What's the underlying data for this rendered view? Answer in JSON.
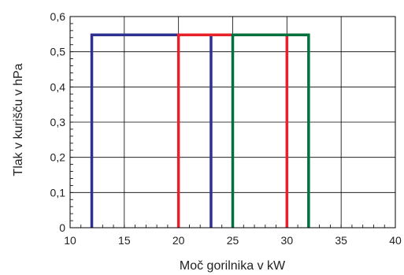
{
  "chart_data": {
    "type": "line",
    "title": "",
    "xlabel": "Moč gorilnika v kW",
    "ylabel": "Tlak v kurišču v hPa",
    "xlim": [
      10,
      40
    ],
    "ylim": [
      0,
      0.6
    ],
    "x_ticks": [
      10,
      15,
      20,
      25,
      30,
      35,
      40
    ],
    "x_tick_labels": [
      "10",
      "15",
      "20",
      "25",
      "30",
      "35",
      "40"
    ],
    "y_ticks": [
      0,
      0.1,
      0.2,
      0.3,
      0.4,
      0.5,
      0.6
    ],
    "y_tick_labels": [
      "0",
      "0,1",
      "0,2",
      "0,3",
      "0,4",
      "0,5",
      "0,6"
    ],
    "grid": true,
    "legend": "none",
    "series": [
      {
        "color": "#2e3192",
        "x": [
          12,
          12,
          23,
          23
        ],
        "y": [
          0,
          0.548,
          0.548,
          0
        ]
      },
      {
        "color": "#e8202a",
        "x": [
          20,
          20,
          30,
          30
        ],
        "y": [
          0,
          0.548,
          0.548,
          0
        ]
      },
      {
        "color": "#00703c",
        "x": [
          25,
          25,
          32,
          32
        ],
        "y": [
          0,
          0.548,
          0.548,
          0
        ]
      }
    ]
  }
}
